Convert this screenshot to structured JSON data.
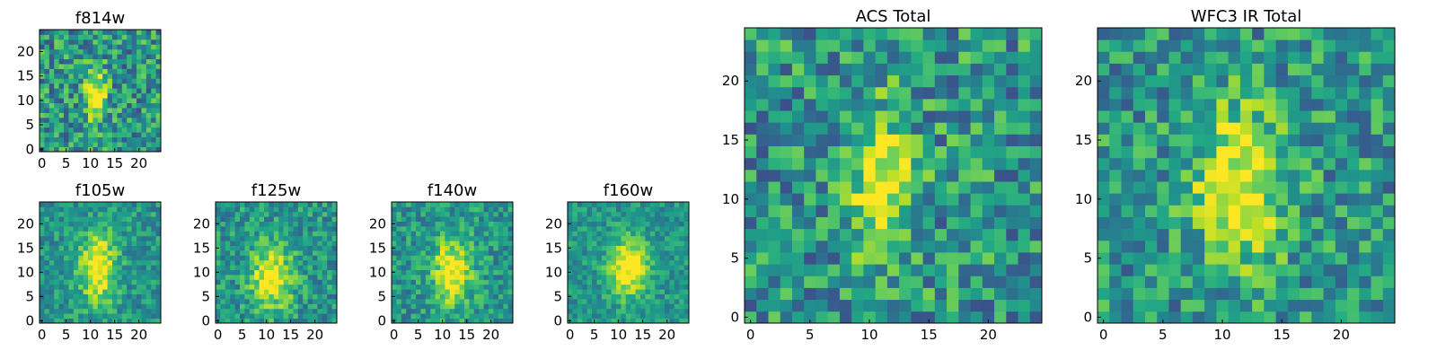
{
  "chart_data": [
    {
      "type": "heatmap",
      "title": "f814w",
      "colormap": "viridis",
      "grid": false,
      "x_ticks": [
        0,
        5,
        10,
        15,
        20
      ],
      "y_ticks": [
        0,
        5,
        10,
        15,
        20
      ],
      "xlim": [
        0,
        24
      ],
      "ylim": [
        0,
        24
      ],
      "pixels": [
        25,
        25
      ],
      "peak": {
        "x": 11,
        "y": 11,
        "sx": 1.5,
        "sy": 3.8
      },
      "noise": 0.55
    },
    {
      "type": "heatmap",
      "title": "f105w",
      "colormap": "viridis",
      "grid": false,
      "x_ticks": [
        0,
        5,
        10,
        15,
        20
      ],
      "y_ticks": [
        0,
        5,
        10,
        15,
        20
      ],
      "xlim": [
        0,
        24
      ],
      "ylim": [
        0,
        24
      ],
      "pixels": [
        25,
        25
      ],
      "peak": {
        "x": 11.5,
        "y": 11,
        "sx": 2.6,
        "sy": 5.0
      },
      "noise": 0.35
    },
    {
      "type": "heatmap",
      "title": "f125w",
      "colormap": "viridis",
      "grid": false,
      "x_ticks": [
        0,
        5,
        10,
        15,
        20
      ],
      "y_ticks": [
        0,
        5,
        10,
        15,
        20
      ],
      "xlim": [
        0,
        24
      ],
      "ylim": [
        0,
        24
      ],
      "pixels": [
        25,
        25
      ],
      "peak": {
        "x": 11,
        "y": 9,
        "sx": 3.0,
        "sy": 4.5
      },
      "noise": 0.4
    },
    {
      "type": "heatmap",
      "title": "f140w",
      "colormap": "viridis",
      "grid": false,
      "x_ticks": [
        0,
        5,
        10,
        15,
        20
      ],
      "y_ticks": [
        0,
        5,
        10,
        15,
        20
      ],
      "xlim": [
        0,
        24
      ],
      "ylim": [
        0,
        24
      ],
      "pixels": [
        25,
        25
      ],
      "peak": {
        "x": 12,
        "y": 10,
        "sx": 2.8,
        "sy": 4.8
      },
      "noise": 0.38
    },
    {
      "type": "heatmap",
      "title": "f160w",
      "colormap": "viridis",
      "grid": false,
      "x_ticks": [
        0,
        5,
        10,
        15,
        20
      ],
      "y_ticks": [
        0,
        5,
        10,
        15,
        20
      ],
      "xlim": [
        0,
        24
      ],
      "ylim": [
        0,
        24
      ],
      "pixels": [
        25,
        25
      ],
      "peak": {
        "x": 12,
        "y": 11,
        "sx": 2.8,
        "sy": 4.2
      },
      "noise": 0.3
    },
    {
      "type": "heatmap",
      "title": "ACS Total",
      "colormap": "viridis",
      "grid": false,
      "x_ticks": [
        0,
        5,
        10,
        15,
        20
      ],
      "y_ticks": [
        0,
        5,
        10,
        15,
        20
      ],
      "xlim": [
        0,
        24
      ],
      "ylim": [
        0,
        24
      ],
      "pixels": [
        25,
        25
      ],
      "peak": {
        "x": 11,
        "y": 11,
        "sx": 1.8,
        "sy": 4.2
      },
      "noise": 0.55
    },
    {
      "type": "heatmap",
      "title": "WFC3 IR Total",
      "colormap": "viridis",
      "grid": false,
      "x_ticks": [
        0,
        5,
        10,
        15,
        20
      ],
      "y_ticks": [
        0,
        5,
        10,
        15,
        20
      ],
      "xlim": [
        0,
        24
      ],
      "ylim": [
        0,
        24
      ],
      "pixels": [
        25,
        25
      ],
      "peak": {
        "x": 11.5,
        "y": 11,
        "sx": 2.6,
        "sy": 4.5
      },
      "noise": 0.5
    }
  ]
}
